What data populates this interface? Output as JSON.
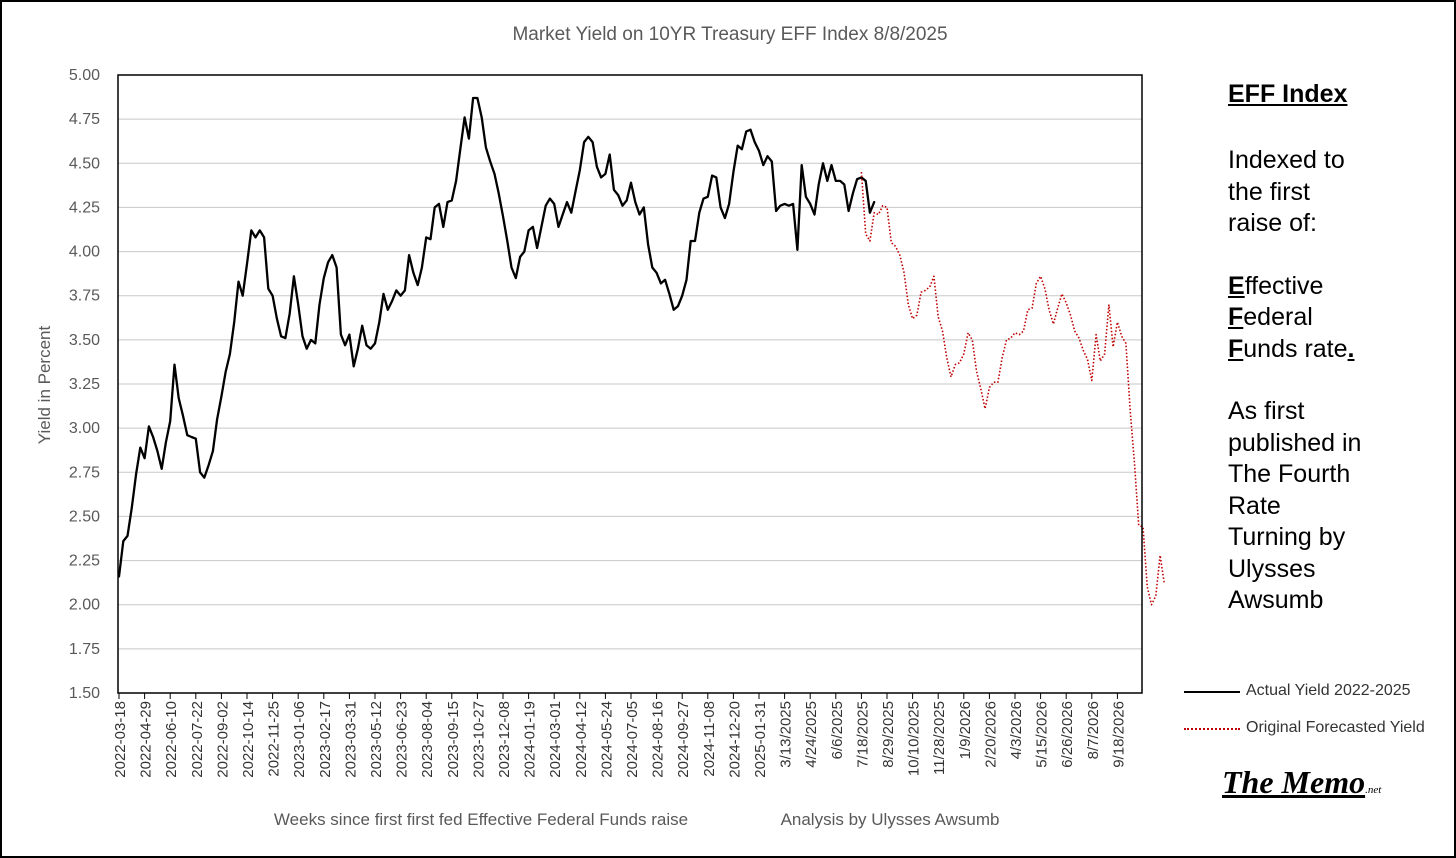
{
  "chart_data": {
    "type": "line",
    "title": "Market Yield on 10YR Treasury EFF Index 8/8/2025",
    "xlabel": "Weeks since first first fed Effective Federal Funds raise",
    "xlabel_note": "Analysis by Ulysses Awsumb",
    "ylabel": "Yield in Percent",
    "ylim": [
      1.5,
      5.0
    ],
    "y_ticks": [
      "5.00",
      "4.75",
      "4.50",
      "4.25",
      "4.00",
      "3.75",
      "3.50",
      "3.25",
      "3.00",
      "2.75",
      "2.50",
      "2.25",
      "2.00",
      "1.75",
      "1.50"
    ],
    "grid": true,
    "legend_position": "right",
    "x_tick_labels": [
      "2022-03-18",
      "2022-04-29",
      "2022-06-10",
      "2022-07-22",
      "2022-09-02",
      "2022-10-14",
      "2022-11-25",
      "2023-01-06",
      "2023-02-17",
      "2023-03-31",
      "2023-05-12",
      "2023-06-23",
      "2023-08-04",
      "2023-09-15",
      "2023-10-27",
      "2023-12-08",
      "2024-01-19",
      "2024-03-01",
      "2024-04-12",
      "2024-05-24",
      "2024-07-05",
      "2024-08-16",
      "2024-09-27",
      "2024-11-08",
      "2024-12-20",
      "2025-01-31",
      "3/13/2025",
      "4/24/2025",
      "6/6/2025",
      "7/18/2025",
      "8/29/2025",
      "10/10/2025",
      "11/28/2025",
      "1/9/2026",
      "2/20/2026",
      "4/3/2026",
      "5/15/2026",
      "6/26/2026",
      "8/7/2026",
      "9/18/2026"
    ],
    "x_weeks_per_tick": 6,
    "series": [
      {
        "name": "Actual Yield 2022-2025",
        "color": "#000000",
        "style": "solid",
        "x_start_week": 0,
        "values": [
          2.16,
          2.36,
          2.39,
          2.55,
          2.74,
          2.89,
          2.83,
          3.01,
          2.95,
          2.87,
          2.77,
          2.92,
          3.04,
          3.36,
          3.17,
          3.07,
          2.96,
          2.95,
          2.94,
          2.75,
          2.72,
          2.79,
          2.87,
          3.05,
          3.18,
          3.32,
          3.42,
          3.6,
          3.83,
          3.75,
          3.93,
          4.12,
          4.08,
          4.12,
          4.08,
          3.79,
          3.75,
          3.62,
          3.52,
          3.51,
          3.65,
          3.86,
          3.7,
          3.52,
          3.45,
          3.5,
          3.48,
          3.7,
          3.85,
          3.94,
          3.98,
          3.91,
          3.53,
          3.47,
          3.53,
          3.35,
          3.45,
          3.58,
          3.47,
          3.45,
          3.48,
          3.6,
          3.76,
          3.67,
          3.72,
          3.78,
          3.75,
          3.78,
          3.98,
          3.88,
          3.81,
          3.91,
          4.08,
          4.07,
          4.25,
          4.27,
          4.14,
          4.28,
          4.29,
          4.4,
          4.58,
          4.76,
          4.64,
          4.87,
          4.87,
          4.76,
          4.59,
          4.51,
          4.44,
          4.33,
          4.2,
          4.06,
          3.91,
          3.85,
          3.97,
          4.0,
          4.12,
          4.14,
          4.02,
          4.14,
          4.26,
          4.3,
          4.27,
          4.14,
          4.21,
          4.28,
          4.22,
          4.34,
          4.46,
          4.62,
          4.65,
          4.62,
          4.48,
          4.42,
          4.44,
          4.55,
          4.35,
          4.32,
          4.26,
          4.29,
          4.39,
          4.28,
          4.21,
          4.25,
          4.04,
          3.91,
          3.88,
          3.82,
          3.84,
          3.76,
          3.67,
          3.69,
          3.75,
          3.84,
          4.06,
          4.06,
          4.22,
          4.3,
          4.31,
          4.43,
          4.42,
          4.25,
          4.19,
          4.27,
          4.45,
          4.6,
          4.58,
          4.68,
          4.69,
          4.62,
          4.57,
          4.49,
          4.54,
          4.51,
          4.23,
          4.26,
          4.27,
          4.26,
          4.27,
          4.01,
          4.49,
          4.31,
          4.27,
          4.21,
          4.38,
          4.5,
          4.4,
          4.49,
          4.4,
          4.4,
          4.38,
          4.23,
          4.33,
          4.41,
          4.42,
          4.4,
          4.22,
          4.28
        ]
      },
      {
        "name": "Original Forecasted Yield",
        "color": "#c00000",
        "style": "dotted",
        "x_start_week": 174,
        "values": [
          4.45,
          4.1,
          4.06,
          4.22,
          4.21,
          4.26,
          4.25,
          4.05,
          4.03,
          3.98,
          3.88,
          3.7,
          3.62,
          3.64,
          3.77,
          3.78,
          3.8,
          3.86,
          3.63,
          3.55,
          3.4,
          3.29,
          3.36,
          3.37,
          3.42,
          3.54,
          3.5,
          3.32,
          3.22,
          3.11,
          3.23,
          3.26,
          3.26,
          3.4,
          3.5,
          3.51,
          3.54,
          3.53,
          3.55,
          3.67,
          3.68,
          3.82,
          3.86,
          3.79,
          3.67,
          3.59,
          3.68,
          3.76,
          3.71,
          3.64,
          3.55,
          3.51,
          3.44,
          3.39,
          3.27,
          3.53,
          3.38,
          3.42,
          3.7,
          3.46,
          3.6,
          3.52,
          3.48,
          3.1,
          2.8,
          2.45,
          2.44,
          2.1,
          2.0,
          2.05,
          2.28,
          2.12
        ]
      }
    ]
  },
  "sidebar": {
    "title": "EFF Index",
    "lines_a": [
      "Indexed to",
      "the first",
      "raise of:"
    ],
    "eff": [
      {
        "first": "E",
        "rest": "ffective"
      },
      {
        "first": "F",
        "rest": "ederal"
      },
      {
        "first": "F",
        "rest": "unds rate",
        "tail": "."
      }
    ],
    "lines_b": [
      "As first",
      "published in",
      "The Fourth",
      "Rate",
      "Turning by",
      "Ulysses",
      "Awsumb"
    ]
  },
  "logo": {
    "main": "The Memo",
    "sub": ".net"
  }
}
